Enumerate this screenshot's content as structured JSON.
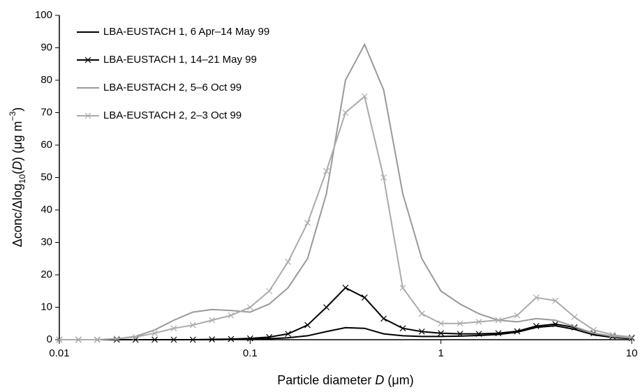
{
  "chart_data": {
    "type": "line",
    "xlabel_parts": [
      "Particle diameter ",
      "D",
      " (μm)"
    ],
    "ylabel_parts": [
      "Δconc/Δlog",
      "10",
      "(",
      "D",
      ") (μg m",
      "−3",
      ")"
    ],
    "xscale": "log",
    "x": [
      0.01,
      0.0126,
      0.0158,
      0.02,
      0.0251,
      0.0316,
      0.0398,
      0.0501,
      0.0631,
      0.0794,
      0.1,
      0.126,
      0.158,
      0.2,
      0.251,
      0.316,
      0.398,
      0.501,
      0.631,
      0.794,
      1,
      1.26,
      1.58,
      2,
      2.51,
      3.16,
      3.98,
      5.01,
      6.31,
      7.94,
      10
    ],
    "series": [
      {
        "name": "LBA-EUSTACH 1, 6 Apr–14 May 99",
        "color": "#000000",
        "marker": "none",
        "values": [
          0,
          0,
          0,
          0,
          0,
          0,
          0,
          0,
          0,
          0.1,
          0.2,
          0.3,
          0.6,
          1.2,
          2.5,
          3.7,
          3.5,
          1.8,
          1.2,
          1.0,
          1.0,
          1.1,
          1.3,
          1.6,
          2.3,
          3.8,
          4.3,
          3.2,
          1.5,
          0.7,
          0.3
        ]
      },
      {
        "name": "LBA-EUSTACH 1, 14–21 May 99",
        "color": "#000000",
        "marker": "x",
        "values": [
          0,
          0,
          0,
          0,
          0,
          0,
          0,
          0,
          0.1,
          0.2,
          0.4,
          0.8,
          1.8,
          4.5,
          10,
          16,
          13,
          6.5,
          3.5,
          2.5,
          2,
          1.8,
          1.8,
          2,
          2.6,
          4.2,
          4.8,
          3.8,
          2,
          1,
          0.5
        ]
      },
      {
        "name": "LBA-EUSTACH 2, 5–6 Oct 99",
        "color": "#999999",
        "marker": "none",
        "values": [
          0,
          0,
          0,
          0.3,
          1,
          3,
          6,
          8.5,
          9.3,
          9,
          8.5,
          11,
          16,
          25,
          45,
          80,
          91,
          77,
          45,
          25,
          15,
          11,
          8,
          6,
          5.5,
          6.5,
          6,
          4,
          2,
          1,
          0.5
        ]
      },
      {
        "name": "LBA-EUSTACH 2, 2–3 Oct 99",
        "color": "#aaaaaa",
        "marker": "x",
        "values": [
          0,
          0,
          0,
          0.3,
          0.8,
          2,
          3.5,
          4.5,
          6,
          7.5,
          10,
          15,
          24,
          36,
          52,
          70,
          75,
          50,
          16,
          8,
          5,
          5,
          5.5,
          6,
          7.5,
          13,
          12,
          7,
          3,
          1.5,
          0.8
        ]
      }
    ],
    "xlim": [
      0.01,
      10
    ],
    "xticks": [
      0.01,
      0.1,
      1,
      10
    ],
    "ylim": [
      0,
      100
    ],
    "yticks": [
      0,
      10,
      20,
      30,
      40,
      50,
      60,
      70,
      80,
      90,
      100
    ],
    "grid": false,
    "legend": "upper-left"
  }
}
